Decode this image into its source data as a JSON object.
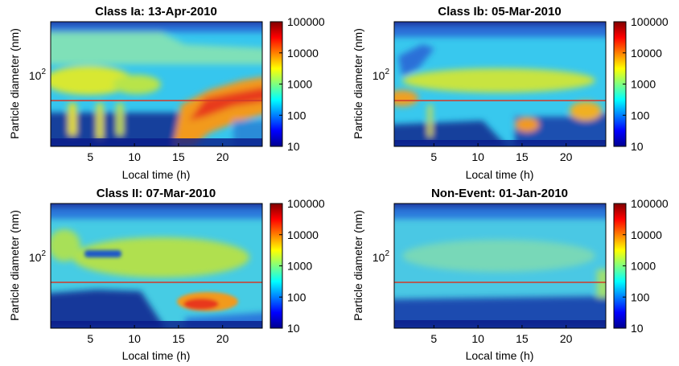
{
  "chart_data": [
    {
      "type": "heatmap",
      "title": "Class Ia: 13-Apr-2010",
      "xlabel": "Local time (h)",
      "ylabel": "Particle diameter (nm)",
      "xticks": [
        "5",
        "10",
        "15",
        "20"
      ],
      "xtick_values": [
        5,
        10,
        15,
        20
      ],
      "yticks": [
        "10",
        "2"
      ],
      "colorbar_ticks": [
        "100000",
        "10000",
        "1000",
        "100",
        "10"
      ],
      "colorbar_values": [
        100000,
        10000,
        1000,
        100,
        10
      ],
      "xlim": [
        0.5,
        24.5
      ],
      "reference_line_color": "#d03a2a",
      "colormap": "jet"
    },
    {
      "type": "heatmap",
      "title": "Class Ib: 05-Mar-2010",
      "xlabel": "Local time (h)",
      "ylabel": "Particle diameter (nm)",
      "xticks": [
        "5",
        "10",
        "15",
        "20"
      ],
      "xtick_values": [
        5,
        10,
        15,
        20
      ],
      "yticks": [
        "10",
        "2"
      ],
      "colorbar_ticks": [
        "100000",
        "10000",
        "1000",
        "100",
        "10"
      ],
      "colorbar_values": [
        100000,
        10000,
        1000,
        100,
        10
      ],
      "xlim": [
        0.5,
        24.5
      ],
      "reference_line_color": "#d03a2a",
      "colormap": "jet"
    },
    {
      "type": "heatmap",
      "title": "Class II: 07-Mar-2010",
      "xlabel": "Local time (h)",
      "ylabel": "Particle diameter (nm)",
      "xticks": [
        "5",
        "10",
        "15",
        "20"
      ],
      "xtick_values": [
        5,
        10,
        15,
        20
      ],
      "yticks": [
        "10",
        "2"
      ],
      "colorbar_ticks": [
        "100000",
        "10000",
        "1000",
        "100",
        "10"
      ],
      "colorbar_values": [
        100000,
        10000,
        1000,
        100,
        10
      ],
      "xlim": [
        0.5,
        24.5
      ],
      "reference_line_color": "#d03a2a",
      "colormap": "jet"
    },
    {
      "type": "heatmap",
      "title": "Non-Event: 01-Jan-2010",
      "xlabel": "Local time (h)",
      "ylabel": "Particle diameter (nm)",
      "xticks": [
        "5",
        "10",
        "15",
        "20"
      ],
      "xtick_values": [
        5,
        10,
        15,
        20
      ],
      "yticks": [
        "10",
        "2"
      ],
      "colorbar_ticks": [
        "100000",
        "10000",
        "1000",
        "100",
        "10"
      ],
      "colorbar_values": [
        100000,
        10000,
        1000,
        100,
        10
      ],
      "xlim": [
        0.5,
        24.5
      ],
      "reference_line_color": "#d03a2a",
      "colormap": "jet"
    }
  ]
}
